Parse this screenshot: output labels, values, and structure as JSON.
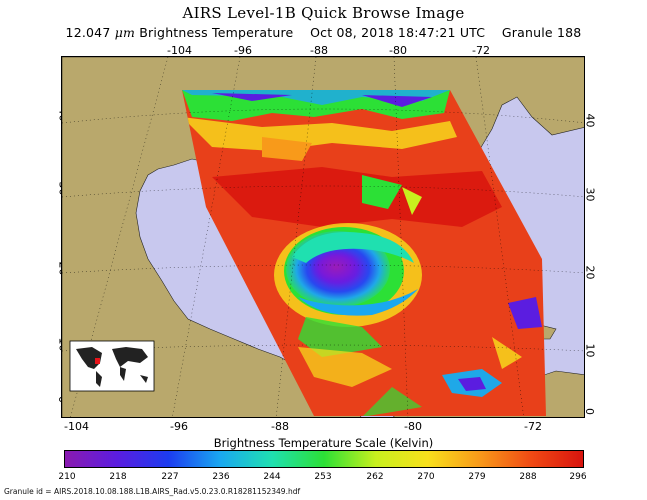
{
  "header": {
    "title": "AIRS Level-1B Quick Browse Image",
    "subtitle_value": "12.047",
    "subtitle_unit": "μm",
    "subtitle_rest": "Brightness Temperature    Oct 08, 2018 18:47:21 UTC    Granule 188"
  },
  "axes": {
    "top_ticks": [
      "-104",
      "-96",
      "-88",
      "-80",
      "-72"
    ],
    "bottom_ticks": [
      "-104",
      "-96",
      "-88",
      "-80",
      "-72"
    ],
    "left_ticks": [
      "40",
      "30",
      "20",
      "10",
      "0"
    ],
    "right_ticks": [
      "40",
      "30",
      "20",
      "10",
      "0"
    ]
  },
  "colorbar": {
    "label": "Brightness Temperature Scale (Kelvin)",
    "ticks": [
      "210",
      "218",
      "227",
      "236",
      "244",
      "253",
      "262",
      "270",
      "279",
      "288",
      "296"
    ],
    "colors": [
      "#8a1ab0",
      "#5b1de0",
      "#1c3cf0",
      "#1aa8f0",
      "#1fe0b0",
      "#2ce036",
      "#c8f01e",
      "#f8e01c",
      "#f89a1a",
      "#f04a14",
      "#d8140e"
    ]
  },
  "map": {
    "ocean_color": "#c8c8ee",
    "land_color": "#b9a86c",
    "storm_feature": "hurricane-michael"
  },
  "footer": {
    "granule_id": "Granule id = AIRS.2018.10.08.188.L1B.AIRS_Rad.v5.0.23.0.R18281152349.hdf"
  }
}
